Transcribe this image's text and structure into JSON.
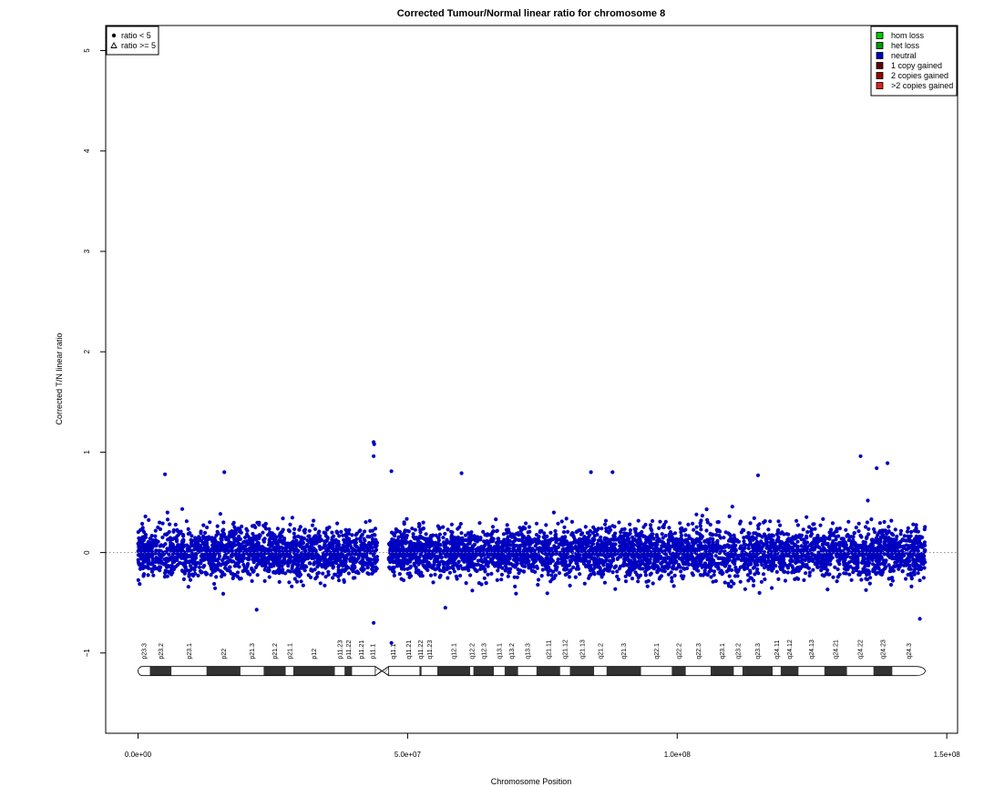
{
  "chart_data": {
    "type": "scatter",
    "title": "Corrected Tumour/Normal linear ratio for chromosome  8",
    "xlabel": "Chromosome Position",
    "ylabel": "Corrected T/N linear ratio",
    "xlim": [
      -6000000,
      152000000
    ],
    "ylim": [
      -1.8,
      5.25
    ],
    "x_ticks": [
      {
        "value": 0,
        "label": "0.0e+00"
      },
      {
        "value": 50000000,
        "label": "5.0e+07"
      },
      {
        "value": 100000000,
        "label": "1.0e+08"
      },
      {
        "value": 150000000,
        "label": "1.5e+08"
      }
    ],
    "y_ticks": [
      {
        "value": -1,
        "label": "−1"
      },
      {
        "value": 0,
        "label": "0"
      },
      {
        "value": 1,
        "label": "1"
      },
      {
        "value": 2,
        "label": "2"
      },
      {
        "value": 3,
        "label": "3"
      },
      {
        "value": 4,
        "label": "4"
      },
      {
        "value": 5,
        "label": "5"
      }
    ],
    "reference_line": {
      "y": 0,
      "style": "dotted",
      "color": "#888888"
    },
    "grid": false,
    "point_color": "#0000C0",
    "point_density_segments": [
      {
        "x_start": 0,
        "x_end": 44500000,
        "spread": 0.22
      },
      {
        "x_start": 46500000,
        "x_end": 146000000,
        "spread": 0.22
      }
    ],
    "outliers": [
      {
        "x": 43700000,
        "y": 1.1
      },
      {
        "x": 43800000,
        "y": 1.08
      },
      {
        "x": 43700000,
        "y": 0.96
      },
      {
        "x": 47000000,
        "y": 0.81
      },
      {
        "x": 47000000,
        "y": -0.9
      },
      {
        "x": 43700000,
        "y": -0.7
      },
      {
        "x": 16000000,
        "y": 0.8
      },
      {
        "x": 5000000,
        "y": 0.78
      },
      {
        "x": 60000000,
        "y": 0.79
      },
      {
        "x": 84000000,
        "y": 0.8
      },
      {
        "x": 88000000,
        "y": 0.8
      },
      {
        "x": 115000000,
        "y": 0.77
      },
      {
        "x": 134000000,
        "y": 0.96
      },
      {
        "x": 137000000,
        "y": 0.84
      },
      {
        "x": 139000000,
        "y": 0.89
      },
      {
        "x": 145000000,
        "y": -0.66
      },
      {
        "x": 22000000,
        "y": -0.57
      },
      {
        "x": 57000000,
        "y": -0.55
      }
    ],
    "legend_shapes": {
      "placement": "top-left",
      "items": [
        {
          "shape": "filled-circle",
          "label": "ratio < 5"
        },
        {
          "shape": "open-triangle",
          "label": "ratio >= 5"
        }
      ]
    },
    "legend_states": {
      "placement": "top-right",
      "items": [
        {
          "label": "hom loss",
          "color": "#00CC00"
        },
        {
          "label": "het loss",
          "color": "#009900"
        },
        {
          "label": "neutral",
          "color": "#0000C0"
        },
        {
          "label": "1 copy gained",
          "color": "#660000"
        },
        {
          "label": "2 copies gained",
          "color": "#990000"
        },
        {
          "label": ">2 copies gained",
          "color": "#DD2222"
        }
      ]
    },
    "ideogram": {
      "y": -1.18,
      "centromere": [
        44000000,
        46500000
      ],
      "length": 146000000,
      "bands": [
        {
          "name": "p23.3",
          "start": 0,
          "end": 2200000,
          "stain": "white"
        },
        {
          "name": "p23.2",
          "start": 2200000,
          "end": 6200000,
          "stain": "dark"
        },
        {
          "name": "p23.1",
          "start": 6200000,
          "end": 12700000,
          "stain": "white"
        },
        {
          "name": "p22",
          "start": 12700000,
          "end": 19000000,
          "stain": "dark"
        },
        {
          "name": "p21.3",
          "start": 19000000,
          "end": 23300000,
          "stain": "white"
        },
        {
          "name": "p21.2",
          "start": 23300000,
          "end": 27400000,
          "stain": "dark"
        },
        {
          "name": "p21.1",
          "start": 27400000,
          "end": 28800000,
          "stain": "white"
        },
        {
          "name": "p12",
          "start": 28800000,
          "end": 36500000,
          "stain": "dark"
        },
        {
          "name": "p11.23",
          "start": 36500000,
          "end": 38300000,
          "stain": "white"
        },
        {
          "name": "p11.22",
          "start": 38300000,
          "end": 39700000,
          "stain": "dark"
        },
        {
          "name": "p11.21",
          "start": 39700000,
          "end": 43100000,
          "stain": "white"
        },
        {
          "name": "p11.1",
          "start": 43100000,
          "end": 44000000,
          "stain": "white"
        },
        {
          "name": "q11.1",
          "start": 46500000,
          "end": 48100000,
          "stain": "white"
        },
        {
          "name": "q11.21",
          "start": 48100000,
          "end": 52200000,
          "stain": "white"
        },
        {
          "name": "q11.22",
          "start": 52200000,
          "end": 52600000,
          "stain": "dark"
        },
        {
          "name": "q11.23",
          "start": 52600000,
          "end": 55500000,
          "stain": "white"
        },
        {
          "name": "q12.1",
          "start": 55500000,
          "end": 61600000,
          "stain": "dark"
        },
        {
          "name": "q12.2",
          "start": 61600000,
          "end": 62200000,
          "stain": "white"
        },
        {
          "name": "q12.3",
          "start": 62200000,
          "end": 66000000,
          "stain": "dark"
        },
        {
          "name": "q13.1",
          "start": 66000000,
          "end": 68000000,
          "stain": "white"
        },
        {
          "name": "q13.2",
          "start": 68000000,
          "end": 70500000,
          "stain": "dark"
        },
        {
          "name": "q13.3",
          "start": 70500000,
          "end": 73900000,
          "stain": "white"
        },
        {
          "name": "q21.11",
          "start": 73900000,
          "end": 78300000,
          "stain": "dark"
        },
        {
          "name": "q21.12",
          "start": 78300000,
          "end": 80100000,
          "stain": "white"
        },
        {
          "name": "q21.13",
          "start": 80100000,
          "end": 84600000,
          "stain": "dark"
        },
        {
          "name": "q21.2",
          "start": 84600000,
          "end": 86900000,
          "stain": "white"
        },
        {
          "name": "q21.3",
          "start": 86900000,
          "end": 93300000,
          "stain": "dark"
        },
        {
          "name": "q22.1",
          "start": 93300000,
          "end": 99000000,
          "stain": "white"
        },
        {
          "name": "q22.2",
          "start": 99000000,
          "end": 101600000,
          "stain": "dark"
        },
        {
          "name": "q22.3",
          "start": 101600000,
          "end": 106200000,
          "stain": "white"
        },
        {
          "name": "q23.1",
          "start": 106200000,
          "end": 110500000,
          "stain": "dark"
        },
        {
          "name": "q23.2",
          "start": 110500000,
          "end": 112100000,
          "stain": "white"
        },
        {
          "name": "q23.3",
          "start": 112100000,
          "end": 117700000,
          "stain": "dark"
        },
        {
          "name": "q24.11",
          "start": 117700000,
          "end": 119200000,
          "stain": "white"
        },
        {
          "name": "q24.12",
          "start": 119200000,
          "end": 122500000,
          "stain": "dark"
        },
        {
          "name": "q24.13",
          "start": 122500000,
          "end": 127300000,
          "stain": "white"
        },
        {
          "name": "q24.21",
          "start": 127300000,
          "end": 131500000,
          "stain": "dark"
        },
        {
          "name": "q24.22",
          "start": 131500000,
          "end": 136400000,
          "stain": "white"
        },
        {
          "name": "q24.23",
          "start": 136400000,
          "end": 139900000,
          "stain": "dark"
        },
        {
          "name": "q24.3",
          "start": 139900000,
          "end": 146000000,
          "stain": "white"
        }
      ]
    }
  }
}
